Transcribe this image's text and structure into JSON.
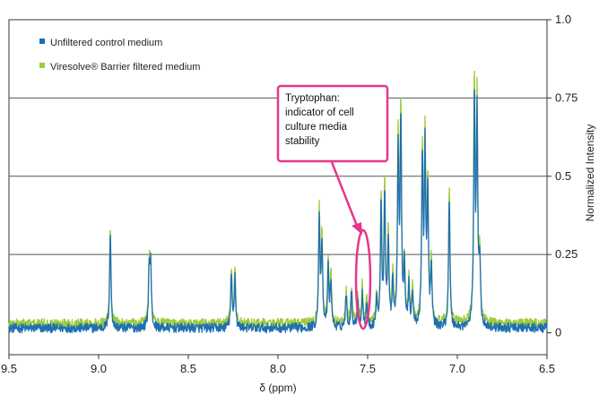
{
  "chart_data": {
    "type": "line",
    "x_reversed": true,
    "xlim": [
      9.5,
      6.5
    ],
    "ylim": [
      -0.07,
      1.0
    ],
    "xlabel": "δ (ppm)",
    "ylabel": "Normalized Intensity",
    "x_ticks": [
      {
        "value": 9.5,
        "label": "9.5"
      },
      {
        "value": 9.0,
        "label": "9.0"
      },
      {
        "value": 8.5,
        "label": "8.5"
      },
      {
        "value": 8.0,
        "label": "8.0"
      },
      {
        "value": 7.5,
        "label": "7.5"
      },
      {
        "value": 7.0,
        "label": "7.0"
      },
      {
        "value": 6.5,
        "label": "6.5"
      }
    ],
    "y_ticks": [
      {
        "value": 0,
        "label": "0"
      },
      {
        "value": 0.25,
        "label": "0.25"
      },
      {
        "value": 0.5,
        "label": "0.5"
      },
      {
        "value": 0.75,
        "label": "0.75"
      },
      {
        "value": 1.0,
        "label": "1.0"
      }
    ],
    "gridlines_y": [
      0.25,
      0.5,
      0.75
    ],
    "legend_position": "top-left",
    "series": [
      {
        "name": "Unfiltered control medium",
        "color": "#1f6fb2",
        "baseline": 0.015,
        "peaks": [
          {
            "x": 8.935,
            "y": 0.32
          },
          {
            "x": 8.718,
            "y": 0.2
          },
          {
            "x": 8.71,
            "y": 0.2
          },
          {
            "x": 8.26,
            "y": 0.18
          },
          {
            "x": 8.24,
            "y": 0.18
          },
          {
            "x": 7.77,
            "y": 0.36
          },
          {
            "x": 7.755,
            "y": 0.28
          },
          {
            "x": 7.72,
            "y": 0.2
          },
          {
            "x": 7.705,
            "y": 0.16
          },
          {
            "x": 7.62,
            "y": 0.12
          },
          {
            "x": 7.59,
            "y": 0.13
          },
          {
            "x": 7.555,
            "y": 0.1
          },
          {
            "x": 7.53,
            "y": 0.12
          },
          {
            "x": 7.505,
            "y": 0.09
          },
          {
            "x": 7.45,
            "y": 0.1
          },
          {
            "x": 7.425,
            "y": 0.4
          },
          {
            "x": 7.405,
            "y": 0.44
          },
          {
            "x": 7.385,
            "y": 0.28
          },
          {
            "x": 7.36,
            "y": 0.16
          },
          {
            "x": 7.33,
            "y": 0.58
          },
          {
            "x": 7.315,
            "y": 0.67
          },
          {
            "x": 7.295,
            "y": 0.2
          },
          {
            "x": 7.27,
            "y": 0.14
          },
          {
            "x": 7.25,
            "y": 0.12
          },
          {
            "x": 7.195,
            "y": 0.55
          },
          {
            "x": 7.18,
            "y": 0.56
          },
          {
            "x": 7.165,
            "y": 0.43
          },
          {
            "x": 7.145,
            "y": 0.2
          },
          {
            "x": 7.045,
            "y": 0.44
          },
          {
            "x": 6.905,
            "y": 0.74
          },
          {
            "x": 6.89,
            "y": 0.68
          },
          {
            "x": 6.875,
            "y": 0.22
          }
        ]
      },
      {
        "name": "Viresolve® Barrier filtered medium",
        "color": "#9ccc3c",
        "baseline": 0.03,
        "peaks": [
          {
            "x": 8.935,
            "y": 0.33
          },
          {
            "x": 8.718,
            "y": 0.22
          },
          {
            "x": 8.71,
            "y": 0.22
          },
          {
            "x": 8.26,
            "y": 0.2
          },
          {
            "x": 8.24,
            "y": 0.2
          },
          {
            "x": 7.77,
            "y": 0.39
          },
          {
            "x": 7.755,
            "y": 0.3
          },
          {
            "x": 7.72,
            "y": 0.22
          },
          {
            "x": 7.705,
            "y": 0.18
          },
          {
            "x": 7.62,
            "y": 0.14
          },
          {
            "x": 7.59,
            "y": 0.15
          },
          {
            "x": 7.555,
            "y": 0.12
          },
          {
            "x": 7.53,
            "y": 0.15
          },
          {
            "x": 7.505,
            "y": 0.11
          },
          {
            "x": 7.45,
            "y": 0.12
          },
          {
            "x": 7.425,
            "y": 0.43
          },
          {
            "x": 7.405,
            "y": 0.47
          },
          {
            "x": 7.385,
            "y": 0.31
          },
          {
            "x": 7.36,
            "y": 0.18
          },
          {
            "x": 7.33,
            "y": 0.62
          },
          {
            "x": 7.315,
            "y": 0.72
          },
          {
            "x": 7.295,
            "y": 0.22
          },
          {
            "x": 7.27,
            "y": 0.16
          },
          {
            "x": 7.25,
            "y": 0.14
          },
          {
            "x": 7.195,
            "y": 0.58
          },
          {
            "x": 7.18,
            "y": 0.6
          },
          {
            "x": 7.165,
            "y": 0.46
          },
          {
            "x": 7.145,
            "y": 0.22
          },
          {
            "x": 7.045,
            "y": 0.47
          },
          {
            "x": 6.905,
            "y": 0.8
          },
          {
            "x": 6.89,
            "y": 0.72
          },
          {
            "x": 6.875,
            "y": 0.24
          }
        ]
      }
    ],
    "annotation": {
      "lines": [
        "Tryptophan:",
        "indicator of cell",
        "culture media",
        "stability"
      ],
      "target_x": 7.53,
      "target_y": 0.1,
      "color": "#e5378a"
    }
  }
}
